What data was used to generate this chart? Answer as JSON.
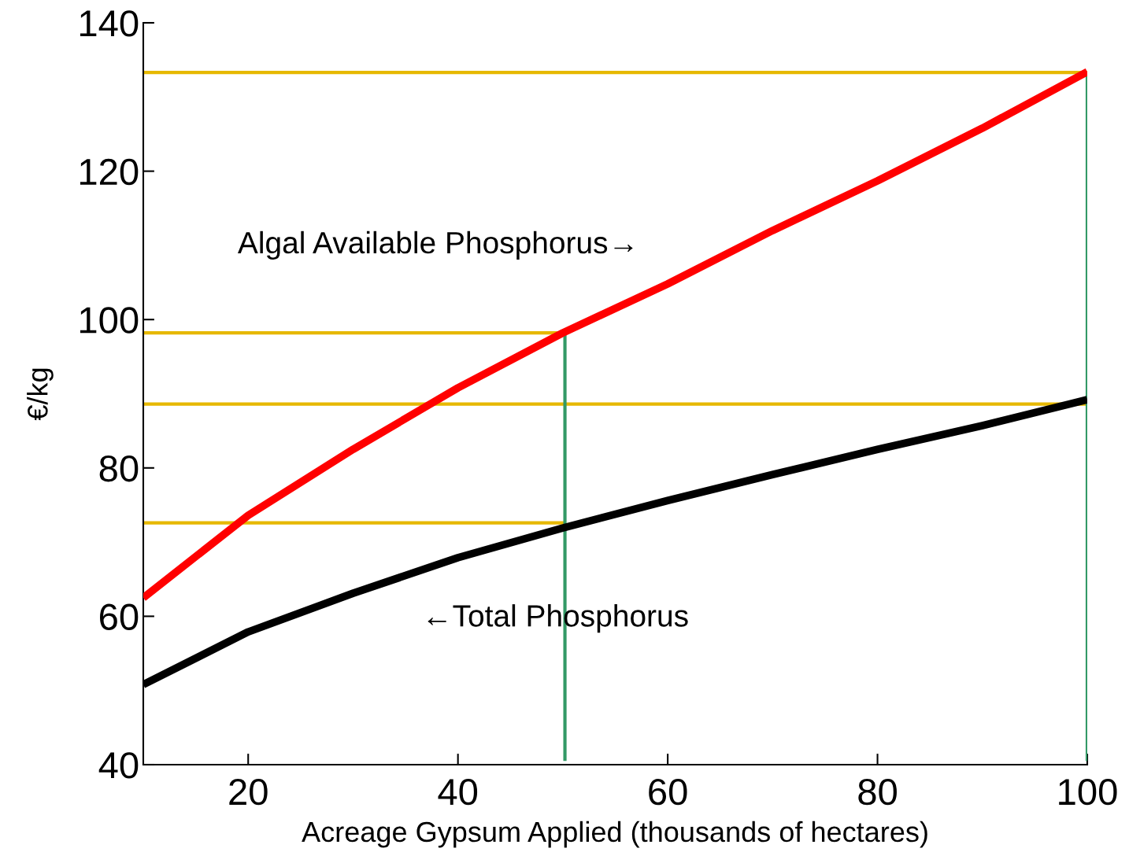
{
  "chart_data": {
    "type": "line",
    "xlabel": "Acreage Gypsum Applied (thousands of hectares)",
    "ylabel": "€/kg",
    "xlim": [
      10,
      100
    ],
    "xticks": [
      20,
      40,
      60,
      80,
      100
    ],
    "ylim": [
      40,
      140
    ],
    "yticks": [
      40,
      60,
      80,
      100,
      120,
      140
    ],
    "grid": false,
    "legend": false,
    "annotations": [
      "Algal Available Phosphorus→",
      "←Total Phosphorus"
    ],
    "series": [
      {
        "color": "#ff0000",
        "x": [
          10,
          20,
          30,
          40,
          50,
          60,
          70,
          80,
          90,
          100
        ],
        "values": [
          62.5,
          73.6,
          82.5,
          90.8,
          98.2,
          104.8,
          112.0,
          118.7,
          125.8,
          133.4
        ]
      },
      {
        "color": "#000000",
        "x": [
          10,
          20,
          30,
          40,
          50,
          60,
          70,
          80,
          90,
          100
        ],
        "values": [
          50.8,
          57.9,
          63.1,
          67.9,
          71.9,
          75.6,
          79.1,
          82.5,
          85.7,
          89.2
        ]
      },
      {
        "color": "#e6b800",
        "x": [
          10,
          100
        ],
        "values": [
          133.3,
          133.3
        ]
      },
      {
        "color": "#e6b800",
        "x": [
          10,
          50.2
        ],
        "values": [
          98.2,
          98.2
        ]
      },
      {
        "color": "#e6b800",
        "x": [
          10,
          100
        ],
        "values": [
          88.6,
          88.6
        ]
      },
      {
        "color": "#e6b800",
        "x": [
          10,
          50.2
        ],
        "values": [
          72.6,
          72.6
        ]
      },
      {
        "color": "#339966",
        "x": [
          50.2,
          50.2
        ],
        "values": [
          40.5,
          98.2
        ]
      },
      {
        "color": "#339966",
        "x": [
          100,
          100
        ],
        "values": [
          40.5,
          133.3
        ]
      }
    ]
  }
}
